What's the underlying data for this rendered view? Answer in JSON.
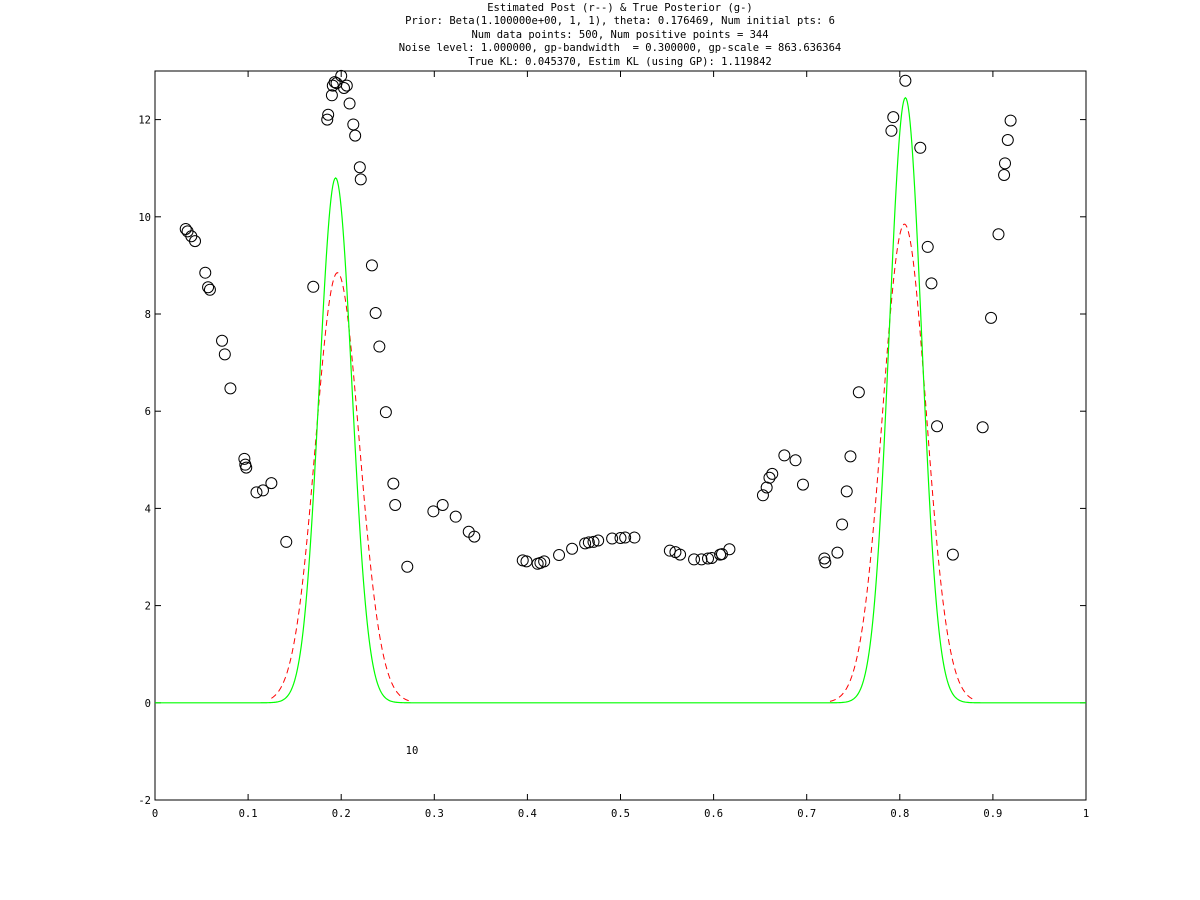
{
  "chart_data": {
    "type": "scatter",
    "title": [
      "Estimated Post (r--) & True Posterior (g-)",
      "Prior: Beta(1.100000e+00, 1, 1), theta: 0.176469, Num initial pts: 6",
      "Num data points: 500, Num positive points = 344",
      "Noise level: 1.000000, gp-bandwidth  = 0.300000, gp-scale = 863.636364",
      "True KL: 0.045370, Estim KL (using GP): 1.119842"
    ],
    "xlabel": "",
    "ylabel": "",
    "xlim": [
      0,
      1
    ],
    "ylim": [
      -2,
      13
    ],
    "x_ticks": [
      "0",
      "0.1",
      "0.2",
      "0.3",
      "0.4",
      "0.5",
      "0.6",
      "0.7",
      "0.8",
      "0.9",
      "1"
    ],
    "y_ticks": [
      "-2",
      "0",
      "2",
      "4",
      "6",
      "8",
      "10",
      "12"
    ],
    "annotations": [
      {
        "text": "10",
        "x": 0.276,
        "y": -1.05
      }
    ],
    "grid": false,
    "series": [
      {
        "style": "open-circle",
        "color": "#000000",
        "points": [
          [
            0.033,
            9.75
          ],
          [
            0.035,
            9.7
          ],
          [
            0.039,
            9.6
          ],
          [
            0.043,
            9.5
          ],
          [
            0.054,
            8.85
          ],
          [
            0.057,
            8.55
          ],
          [
            0.059,
            8.5
          ],
          [
            0.072,
            7.45
          ],
          [
            0.075,
            7.17
          ],
          [
            0.081,
            6.47
          ],
          [
            0.096,
            5.02
          ],
          [
            0.097,
            4.9
          ],
          [
            0.098,
            4.84
          ],
          [
            0.109,
            4.33
          ],
          [
            0.116,
            4.37
          ],
          [
            0.125,
            4.52
          ],
          [
            0.141,
            3.31
          ],
          [
            0.17,
            8.56
          ],
          [
            0.185,
            12.0
          ],
          [
            0.186,
            12.1
          ],
          [
            0.19,
            12.5
          ],
          [
            0.191,
            12.7
          ],
          [
            0.193,
            12.77
          ],
          [
            0.195,
            12.75
          ],
          [
            0.2,
            12.9
          ],
          [
            0.203,
            12.65
          ],
          [
            0.206,
            12.7
          ],
          [
            0.209,
            12.33
          ],
          [
            0.213,
            11.9
          ],
          [
            0.215,
            11.67
          ],
          [
            0.22,
            11.02
          ],
          [
            0.221,
            10.77
          ],
          [
            0.233,
            9.0
          ],
          [
            0.237,
            8.02
          ],
          [
            0.241,
            7.33
          ],
          [
            0.248,
            5.98
          ],
          [
            0.256,
            4.51
          ],
          [
            0.258,
            4.07
          ],
          [
            0.271,
            2.8
          ],
          [
            0.299,
            3.94
          ],
          [
            0.309,
            4.07
          ],
          [
            0.323,
            3.83
          ],
          [
            0.337,
            3.52
          ],
          [
            0.343,
            3.42
          ],
          [
            0.395,
            2.93
          ],
          [
            0.399,
            2.91
          ],
          [
            0.411,
            2.86
          ],
          [
            0.414,
            2.88
          ],
          [
            0.418,
            2.91
          ],
          [
            0.434,
            3.04
          ],
          [
            0.448,
            3.17
          ],
          [
            0.462,
            3.28
          ],
          [
            0.466,
            3.3
          ],
          [
            0.471,
            3.31
          ],
          [
            0.476,
            3.34
          ],
          [
            0.491,
            3.38
          ],
          [
            0.5,
            3.39
          ],
          [
            0.505,
            3.4
          ],
          [
            0.515,
            3.4
          ],
          [
            0.553,
            3.13
          ],
          [
            0.559,
            3.1
          ],
          [
            0.564,
            3.05
          ],
          [
            0.579,
            2.95
          ],
          [
            0.587,
            2.95
          ],
          [
            0.594,
            2.97
          ],
          [
            0.598,
            2.98
          ],
          [
            0.607,
            3.05
          ],
          [
            0.609,
            3.06
          ],
          [
            0.617,
            3.16
          ],
          [
            0.653,
            4.27
          ],
          [
            0.657,
            4.43
          ],
          [
            0.66,
            4.63
          ],
          [
            0.663,
            4.71
          ],
          [
            0.676,
            5.09
          ],
          [
            0.688,
            4.99
          ],
          [
            0.696,
            4.49
          ],
          [
            0.719,
            2.97
          ],
          [
            0.72,
            2.89
          ],
          [
            0.733,
            3.09
          ],
          [
            0.738,
            3.67
          ],
          [
            0.743,
            4.35
          ],
          [
            0.747,
            5.07
          ],
          [
            0.756,
            6.39
          ],
          [
            0.791,
            11.77
          ],
          [
            0.793,
            12.05
          ],
          [
            0.806,
            12.8
          ],
          [
            0.822,
            11.42
          ],
          [
            0.83,
            9.38
          ],
          [
            0.834,
            8.63
          ],
          [
            0.84,
            5.69
          ],
          [
            0.857,
            3.05
          ],
          [
            0.889,
            5.67
          ],
          [
            0.898,
            7.92
          ],
          [
            0.906,
            9.64
          ],
          [
            0.912,
            10.86
          ],
          [
            0.913,
            11.1
          ],
          [
            0.916,
            11.58
          ],
          [
            0.919,
            11.98
          ]
        ]
      },
      {
        "style": "dashed-line",
        "color": "#ff0000",
        "peaks": [
          {
            "center": 0.196,
            "height": 8.85,
            "sigma": 0.0235
          },
          {
            "center": 0.805,
            "height": 9.85,
            "sigma": 0.0235
          }
        ],
        "support": [
          [
            0.125,
            0.275
          ],
          [
            0.725,
            0.88
          ]
        ]
      },
      {
        "style": "solid-line",
        "color": "#00ff00",
        "peaks": [
          {
            "center": 0.194,
            "height": 10.8,
            "sigma": 0.0175
          },
          {
            "center": 0.806,
            "height": 12.45,
            "sigma": 0.0175
          }
        ]
      }
    ]
  }
}
